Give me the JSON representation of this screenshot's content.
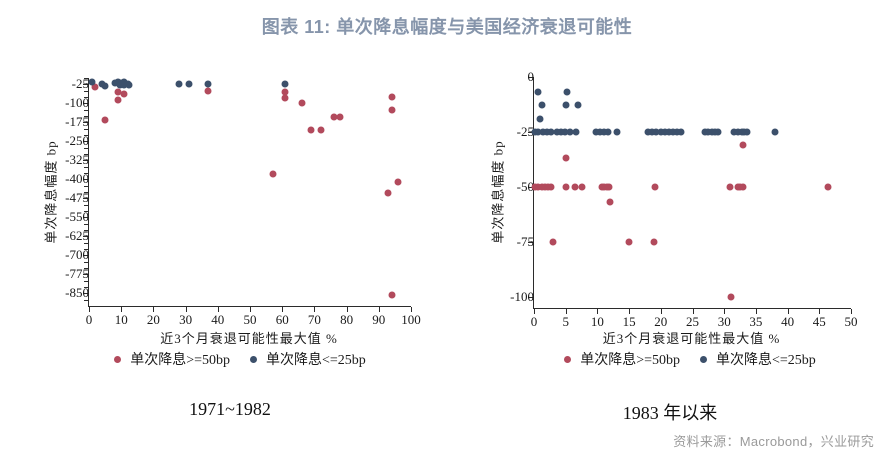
{
  "title": "图表 11: 单次降息幅度与美国经济衰退可能性",
  "source": "资料来源：Macrobond，兴业研究",
  "legend": {
    "red_label": "单次降息>=50bp",
    "blue_label": "单次降息<=25bp"
  },
  "colors": {
    "red": "#b24a5c",
    "blue": "#3c506b",
    "title": "#8695ab",
    "source": "#9a9a9a",
    "axis": "#2b2b2b"
  },
  "chart_data": [
    {
      "type": "scatter",
      "title": "1971~1982",
      "xlabel": "近3个月衰退可能性最大值 %",
      "ylabel": "单次降息幅度 bp",
      "xlim": [
        0,
        100
      ],
      "ylim": [
        0,
        -900
      ],
      "xticks": [
        0,
        10,
        20,
        30,
        40,
        50,
        60,
        70,
        80,
        90,
        100
      ],
      "yticks_labeled": [
        -25,
        -100,
        -175,
        -250,
        -325,
        -400,
        -475,
        -550,
        -625,
        -700,
        -775,
        -850
      ],
      "ytick_minor_step": 25,
      "grid": false,
      "legend_position": "bottom",
      "series": [
        {
          "name": "单次降息>=50bp",
          "color_key": "red",
          "points": [
            [
              2,
              -35
            ],
            [
              5,
              -165
            ],
            [
              9,
              -55
            ],
            [
              9,
              -88
            ],
            [
              11,
              -65
            ],
            [
              37,
              -50
            ],
            [
              57,
              -380
            ],
            [
              61,
              -55
            ],
            [
              61,
              -80
            ],
            [
              66,
              -100
            ],
            [
              69,
              -205
            ],
            [
              72,
              -205
            ],
            [
              76,
              -155
            ],
            [
              78,
              -155
            ],
            [
              93,
              -455
            ],
            [
              94,
              -75
            ],
            [
              94,
              -128
            ],
            [
              94,
              -855
            ],
            [
              96,
              -410
            ]
          ]
        },
        {
          "name": "单次降息<=25bp",
          "color_key": "blue",
          "points": [
            [
              1,
              -15
            ],
            [
              4,
              -22
            ],
            [
              5,
              -30
            ],
            [
              8,
              -20
            ],
            [
              9,
              -16
            ],
            [
              9.5,
              -27
            ],
            [
              10,
              -20
            ],
            [
              11,
              -16
            ],
            [
              11,
              -28
            ],
            [
              12,
              -22
            ],
            [
              12.5,
              -26
            ],
            [
              28,
              -25
            ],
            [
              31,
              -25
            ],
            [
              37,
              -25
            ],
            [
              61,
              -25
            ]
          ]
        }
      ]
    },
    {
      "type": "scatter",
      "title": "1983 年以来",
      "xlabel": "近3个月衰退可能性最大值 %",
      "ylabel": "单次降息幅度 bp",
      "xlim": [
        0,
        50
      ],
      "ylim": [
        0,
        -105
      ],
      "xticks": [
        0,
        5,
        10,
        15,
        20,
        25,
        30,
        35,
        40,
        45,
        50
      ],
      "yticks_labeled": [
        0,
        -25,
        -50,
        -75,
        -100
      ],
      "ytick_minor_step": null,
      "grid": false,
      "legend_position": "bottom",
      "series": [
        {
          "name": "单次降息>=50bp",
          "color_key": "red",
          "points": [
            [
              0.2,
              -50
            ],
            [
              0.7,
              -50
            ],
            [
              1.2,
              -50
            ],
            [
              1.7,
              -50
            ],
            [
              2.2,
              -50
            ],
            [
              2.7,
              -50
            ],
            [
              5,
              -50
            ],
            [
              6.4,
              -50
            ],
            [
              7.6,
              -50
            ],
            [
              10.7,
              -50
            ],
            [
              11.1,
              -50
            ],
            [
              11.5,
              -50
            ],
            [
              11.9,
              -50
            ],
            [
              19.1,
              -50
            ],
            [
              30.9,
              -50
            ],
            [
              32.1,
              -50
            ],
            [
              32.5,
              -50
            ],
            [
              32.9,
              -50
            ],
            [
              46.4,
              -50
            ],
            [
              5,
              -37
            ],
            [
              33,
              -31
            ],
            [
              12,
              -57
            ],
            [
              3,
              -75
            ],
            [
              15,
              -75
            ],
            [
              19,
              -75
            ],
            [
              31,
              -100
            ]
          ]
        },
        {
          "name": "单次降息<=25bp",
          "color_key": "blue",
          "points": [
            [
              0.7,
              -7
            ],
            [
              5.2,
              -7
            ],
            [
              1.3,
              -12.5
            ],
            [
              5.1,
              -12.5
            ],
            [
              6.9,
              -12.5
            ],
            [
              1,
              -19
            ],
            [
              0.1,
              -25
            ],
            [
              0.7,
              -25
            ],
            [
              1.4,
              -25
            ],
            [
              2,
              -25
            ],
            [
              2.7,
              -25
            ],
            [
              3.6,
              -25
            ],
            [
              4.3,
              -25
            ],
            [
              4.9,
              -25
            ],
            [
              5.6,
              -25
            ],
            [
              6.7,
              -25
            ],
            [
              9.8,
              -25
            ],
            [
              10.4,
              -25
            ],
            [
              11,
              -25
            ],
            [
              11.6,
              -25
            ],
            [
              13.1,
              -25
            ],
            [
              18,
              -25
            ],
            [
              18.6,
              -25
            ],
            [
              19.3,
              -25
            ],
            [
              20,
              -25
            ],
            [
              20.6,
              -25
            ],
            [
              21.3,
              -25
            ],
            [
              22,
              -25
            ],
            [
              22.5,
              -25
            ],
            [
              23.2,
              -25
            ],
            [
              27,
              -25
            ],
            [
              27.5,
              -25
            ],
            [
              28,
              -25
            ],
            [
              28.5,
              -25
            ],
            [
              29,
              -25
            ],
            [
              31.5,
              -25
            ],
            [
              32.1,
              -25
            ],
            [
              32.8,
              -25
            ],
            [
              33.2,
              -25
            ],
            [
              33.6,
              -25
            ],
            [
              38,
              -25
            ]
          ]
        }
      ]
    }
  ]
}
